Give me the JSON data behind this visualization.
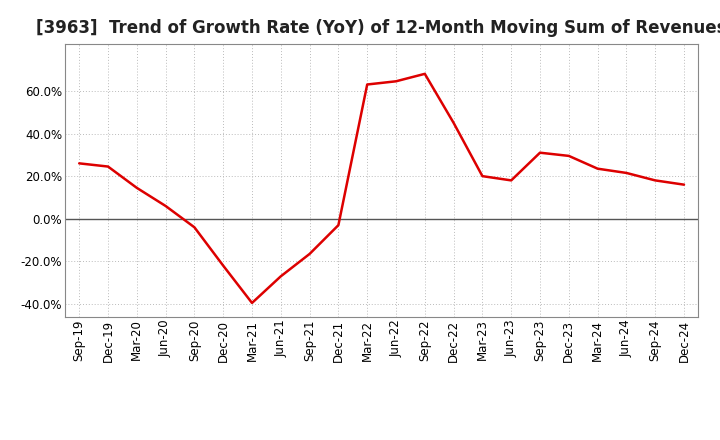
{
  "title": "[3963]  Trend of Growth Rate (YoY) of 12-Month Moving Sum of Revenues",
  "line_color": "#dd0000",
  "line_width": 1.8,
  "background_color": "#ffffff",
  "grid_color": "#bbbbbb",
  "xlabels": [
    "Sep-19",
    "Dec-19",
    "Mar-20",
    "Jun-20",
    "Sep-20",
    "Dec-20",
    "Mar-21",
    "Jun-21",
    "Sep-21",
    "Dec-21",
    "Mar-22",
    "Jun-22",
    "Sep-22",
    "Dec-22",
    "Mar-23",
    "Jun-23",
    "Sep-23",
    "Dec-23",
    "Mar-24",
    "Jun-24",
    "Sep-24",
    "Dec-24"
  ],
  "yvalues": [
    0.26,
    0.245,
    0.145,
    0.06,
    -0.04,
    -0.22,
    -0.395,
    -0.27,
    -0.165,
    -0.03,
    0.63,
    0.645,
    0.68,
    0.45,
    0.2,
    0.18,
    0.31,
    0.295,
    0.235,
    0.215,
    0.18,
    0.16
  ],
  "ylim": [
    -0.46,
    0.82
  ],
  "yticks": [
    -0.4,
    -0.2,
    0.0,
    0.2,
    0.4,
    0.6
  ],
  "title_fontsize": 12,
  "tick_fontsize": 8.5
}
